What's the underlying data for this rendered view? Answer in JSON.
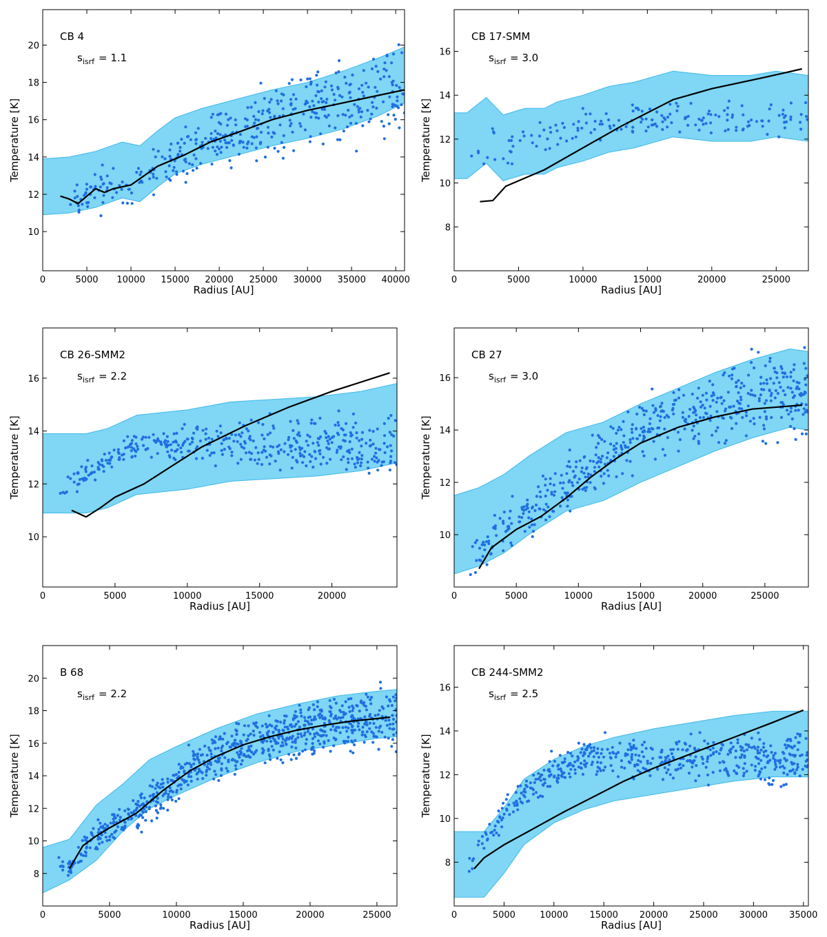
{
  "figure": {
    "colors": {
      "band": "#7fd6f5",
      "band_edge": "#3fb8e8",
      "points": "#1f6fe0",
      "model": "#000000",
      "axes": "#000000"
    }
  },
  "chart_data": [
    {
      "type": "scatter",
      "name": "CB 4",
      "label": "CB 4",
      "param_symbol": "s",
      "param_sub": "isrf",
      "param_eq": "= 1.1",
      "xlabel": "Radius [AU]",
      "ylabel": "Temperature [K]",
      "xlim": [
        0,
        41000
      ],
      "ylim": [
        7.9,
        21.9
      ],
      "xticks": [
        0,
        5000,
        10000,
        15000,
        20000,
        25000,
        30000,
        35000,
        40000
      ],
      "yticks": [
        10,
        12,
        14,
        16,
        18,
        20
      ],
      "band_x": [
        0,
        3000,
        6000,
        9000,
        11000,
        13000,
        15000,
        18000,
        22000,
        26000,
        30000,
        34000,
        38000,
        41000
      ],
      "band_upper": [
        13.9,
        14.0,
        14.3,
        14.8,
        14.6,
        15.4,
        16.1,
        16.6,
        17.1,
        17.6,
        18.0,
        18.6,
        19.3,
        19.9
      ],
      "band_lower": [
        10.9,
        11.0,
        11.3,
        11.8,
        11.6,
        12.4,
        13.1,
        13.6,
        14.1,
        14.6,
        15.0,
        15.5,
        16.2,
        16.9
      ],
      "model": {
        "x": [
          2000,
          3000,
          4000,
          5000,
          6000,
          7000,
          8000,
          10000,
          13000,
          16000,
          19000,
          22000,
          26000,
          30000,
          34000,
          38000,
          41000
        ],
        "y": [
          11.9,
          11.75,
          11.5,
          11.9,
          12.3,
          12.1,
          12.3,
          12.5,
          13.5,
          14.1,
          14.8,
          15.3,
          16.0,
          16.5,
          16.9,
          17.3,
          17.6
        ]
      },
      "scatter": {
        "x_start": 2000,
        "x_end": 41000,
        "n": 430,
        "center": "model",
        "spread_start": 0.4,
        "spread_end": 1.2,
        "seed": 11
      }
    },
    {
      "type": "scatter",
      "name": "CB 17-SMM",
      "label": "CB 17-SMM",
      "param_symbol": "s",
      "param_sub": "isrf",
      "param_eq": "= 3.0",
      "xlabel": "Radius [AU]",
      "ylabel": "Temperature [K]",
      "xlim": [
        0,
        27500
      ],
      "ylim": [
        6.0,
        17.9
      ],
      "xticks": [
        0,
        5000,
        10000,
        15000,
        20000,
        25000
      ],
      "yticks": [
        8,
        10,
        12,
        14,
        16
      ],
      "band_x": [
        0,
        1000,
        2500,
        3800,
        5500,
        7000,
        8000,
        10000,
        12000,
        14000,
        17000,
        20000,
        23000,
        25000,
        27500
      ],
      "band_upper": [
        13.2,
        13.2,
        13.9,
        13.1,
        13.4,
        13.4,
        13.7,
        14.0,
        14.4,
        14.6,
        15.1,
        14.9,
        14.9,
        15.1,
        14.9
      ],
      "band_lower": [
        10.2,
        10.2,
        10.9,
        10.1,
        10.4,
        10.4,
        10.7,
        11.0,
        11.4,
        11.6,
        12.1,
        11.9,
        11.9,
        12.1,
        11.9
      ],
      "model": {
        "x": [
          2000,
          3000,
          4000,
          5000,
          7000,
          10000,
          13000,
          17000,
          20000,
          24000,
          27000
        ],
        "y": [
          9.15,
          9.2,
          9.85,
          10.1,
          10.6,
          11.6,
          12.6,
          13.8,
          14.3,
          14.8,
          15.2
        ]
      },
      "scatter": {
        "x_start": 1000,
        "x_end": 27500,
        "n": 170,
        "center": "flat",
        "flat_from": 11.2,
        "flat_to": 12.9,
        "flat_knee": 17000,
        "spread_start": 0.45,
        "spread_end": 0.35,
        "seed": 23
      }
    },
    {
      "type": "scatter",
      "name": "CB 26-SMM2",
      "label": "CB 26-SMM2",
      "param_symbol": "s",
      "param_sub": "isrf",
      "param_eq": "= 2.2",
      "xlabel": "Radius [AU]",
      "ylabel": "Temperature [K]",
      "xlim": [
        0,
        24500
      ],
      "ylim": [
        8.1,
        17.9
      ],
      "xticks": [
        0,
        5000,
        10000,
        15000,
        20000
      ],
      "yticks": [
        10,
        12,
        14,
        16
      ],
      "band_x": [
        0,
        3000,
        4500,
        6500,
        10000,
        13000,
        16000,
        19000,
        22000,
        24500
      ],
      "band_upper": [
        13.9,
        13.9,
        14.1,
        14.6,
        14.8,
        15.1,
        15.2,
        15.3,
        15.5,
        15.8
      ],
      "band_lower": [
        10.9,
        10.9,
        11.1,
        11.6,
        11.8,
        12.1,
        12.2,
        12.3,
        12.5,
        12.8
      ],
      "model": {
        "x": [
          2000,
          3000,
          4000,
          5000,
          7000,
          9000,
          11000,
          14000,
          17000,
          20000,
          24000
        ],
        "y": [
          11.0,
          10.75,
          11.1,
          11.5,
          12.0,
          12.7,
          13.4,
          14.2,
          14.9,
          15.5,
          16.2
        ]
      },
      "scatter": {
        "x_start": 1000,
        "x_end": 24500,
        "n": 420,
        "center": "flat",
        "flat_from": 11.6,
        "flat_to": 13.5,
        "flat_knee": 9000,
        "spread_start": 0.2,
        "spread_end": 0.55,
        "seed": 37
      }
    },
    {
      "type": "scatter",
      "name": "CB 27",
      "label": "CB 27",
      "param_symbol": "s",
      "param_sub": "isrf",
      "param_eq": "= 3.0",
      "xlabel": "Radius [AU]",
      "ylabel": "Temperature [K]",
      "xlim": [
        0,
        28500
      ],
      "ylim": [
        8.0,
        17.9
      ],
      "xticks": [
        0,
        5000,
        10000,
        15000,
        20000,
        25000
      ],
      "yticks": [
        10,
        12,
        14,
        16
      ],
      "band_x": [
        0,
        2000,
        4000,
        6000,
        9000,
        12000,
        15000,
        18000,
        21000,
        24000,
        27000,
        28500
      ],
      "band_upper": [
        11.5,
        11.8,
        12.3,
        13.0,
        13.9,
        14.3,
        15.0,
        15.6,
        16.2,
        16.7,
        17.1,
        17.0
      ],
      "band_lower": [
        8.5,
        8.8,
        9.3,
        10.0,
        10.9,
        11.3,
        12.0,
        12.6,
        13.2,
        13.7,
        14.1,
        14.0
      ],
      "model": {
        "x": [
          2000,
          3000,
          4000,
          5000,
          7000,
          9000,
          11000,
          13000,
          15000,
          18000,
          21000,
          24000,
          28000
        ],
        "y": [
          8.7,
          9.5,
          9.85,
          10.2,
          10.7,
          11.4,
          12.2,
          12.9,
          13.5,
          14.1,
          14.5,
          14.8,
          14.95
        ]
      },
      "scatter": {
        "x_start": 1000,
        "x_end": 28500,
        "n": 520,
        "center": "model_shift",
        "shift": 0.4,
        "spread_start": 0.35,
        "spread_end": 0.8,
        "seed": 41
      }
    },
    {
      "type": "scatter",
      "name": "B 68",
      "label": "B 68",
      "param_symbol": "s",
      "param_sub": "isrf",
      "param_eq": "= 2.2",
      "xlabel": "Radius [AU]",
      "ylabel": "Temperature [K]",
      "xlim": [
        0,
        26500
      ],
      "ylim": [
        6.0,
        22.0
      ],
      "xticks": [
        0,
        5000,
        10000,
        15000,
        20000,
        25000
      ],
      "yticks": [
        8,
        10,
        12,
        14,
        16,
        18,
        20
      ],
      "band_x": [
        0,
        2000,
        4000,
        6000,
        8000,
        10000,
        13000,
        16000,
        19000,
        22000,
        25000,
        26500
      ],
      "band_upper": [
        9.6,
        10.1,
        12.2,
        13.5,
        15.0,
        15.8,
        16.9,
        17.8,
        18.4,
        18.9,
        19.2,
        19.3
      ],
      "band_lower": [
        6.8,
        7.6,
        8.8,
        10.6,
        12.0,
        12.8,
        13.9,
        14.8,
        15.5,
        15.9,
        16.3,
        16.4
      ],
      "model": {
        "x": [
          2000,
          3000,
          4000,
          5000,
          7000,
          9000,
          11000,
          13000,
          15000,
          17000,
          19000,
          21000,
          23000,
          26000
        ],
        "y": [
          8.3,
          9.7,
          10.3,
          10.8,
          11.7,
          13.1,
          14.3,
          15.2,
          15.9,
          16.4,
          16.8,
          17.1,
          17.35,
          17.6
        ]
      },
      "scatter": {
        "x_start": 1000,
        "x_end": 26500,
        "n": 780,
        "center": "model",
        "spread_start": 0.35,
        "spread_end": 1.0,
        "seed": 53
      }
    },
    {
      "type": "scatter",
      "name": "CB 244-SMM2",
      "label": "CB 244-SMM2",
      "param_symbol": "s",
      "param_sub": "isrf",
      "param_eq": "= 2.5",
      "xlabel": "Radius [AU]",
      "ylabel": "Temperature [K]",
      "xlim": [
        0,
        35500
      ],
      "ylim": [
        6.0,
        17.9
      ],
      "xticks": [
        0,
        5000,
        10000,
        15000,
        20000,
        25000,
        30000,
        35000
      ],
      "yticks": [
        8,
        10,
        12,
        14,
        16
      ],
      "band_x": [
        0,
        3000,
        5000,
        7000,
        10000,
        13000,
        16000,
        20000,
        24000,
        28000,
        32000,
        35500
      ],
      "band_upper": [
        9.4,
        9.4,
        10.5,
        11.8,
        12.7,
        13.3,
        13.7,
        14.1,
        14.4,
        14.7,
        14.9,
        14.9
      ],
      "band_lower": [
        6.4,
        6.4,
        7.5,
        8.8,
        9.8,
        10.4,
        10.8,
        11.1,
        11.4,
        11.7,
        11.9,
        11.9
      ],
      "model": {
        "x": [
          2000,
          3000,
          4000,
          5000,
          7000,
          9000,
          11000,
          14000,
          17000,
          20000,
          24000,
          28000,
          32000,
          35000
        ],
        "y": [
          7.7,
          8.2,
          8.5,
          8.8,
          9.3,
          9.8,
          10.3,
          11.0,
          11.7,
          12.3,
          13.0,
          13.7,
          14.4,
          14.95
        ]
      },
      "scatter": {
        "x_start": 1500,
        "x_end": 35500,
        "n": 520,
        "center": "flat",
        "flat_from": 8.0,
        "flat_to": 12.8,
        "flat_knee": 15000,
        "spread_start": 0.3,
        "spread_end": 0.6,
        "seed": 67
      }
    }
  ]
}
